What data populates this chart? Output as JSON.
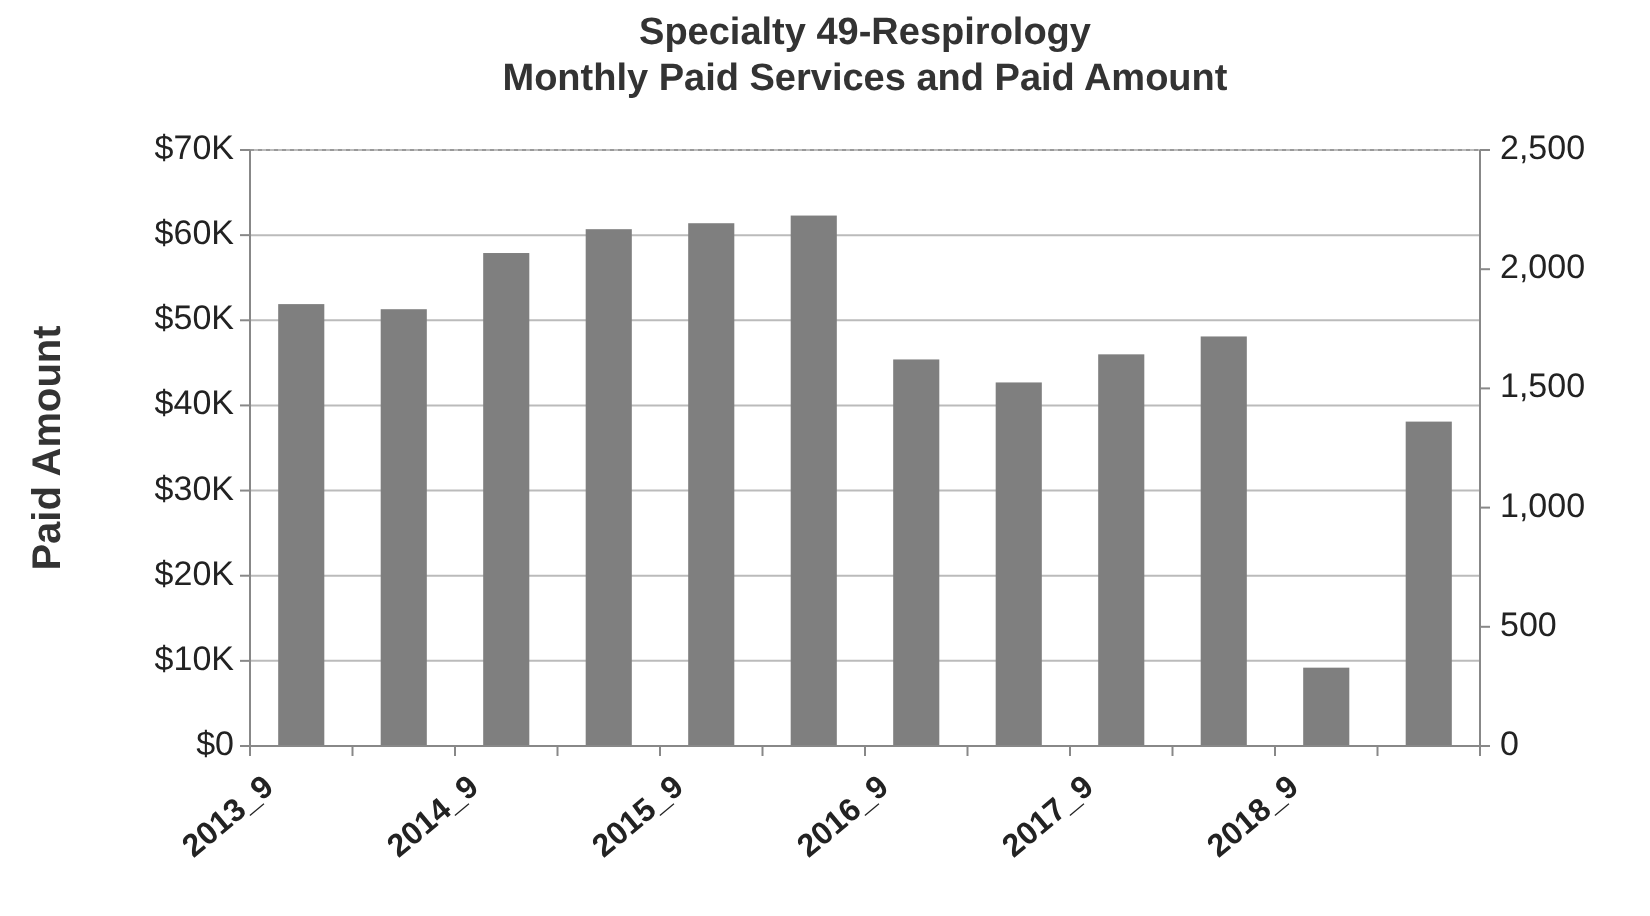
{
  "chart_data": {
    "type": "bar",
    "title": "Specialty 49-Respirology\nMonthly Paid Services and Paid Amount",
    "ylabel": "Paid Amount",
    "categories": [
      "2013_9",
      null,
      "2014_9",
      null,
      "2015_9",
      null,
      "2016_9",
      null,
      "2017_9",
      null,
      "2018_9",
      null
    ],
    "values": [
      51.9,
      51.3,
      57.9,
      60.7,
      61.4,
      62.3,
      45.4,
      42.7,
      46,
      48.1,
      9.2,
      38.1
    ],
    "color": "#7f7f7f",
    "ylim": [
      0,
      70
    ],
    "yticks": [
      {
        "value": 0,
        "label": "$0"
      },
      {
        "value": 10,
        "label": "$10K"
      },
      {
        "value": 20,
        "label": "$20K"
      },
      {
        "value": 30,
        "label": "$30K"
      },
      {
        "value": 40,
        "label": "$40K"
      },
      {
        "value": 50,
        "label": "$50K"
      },
      {
        "value": 60,
        "label": "$60K"
      },
      {
        "value": 70,
        "label": "$70K"
      }
    ],
    "y2lim": [
      0,
      2500
    ],
    "y2ticks": [
      0,
      {
        "value": 500,
        "label": "500"
      },
      {
        "value": 1000,
        "label": "1,000"
      },
      {
        "value": 1500,
        "label": "1,500"
      },
      {
        "value": 2000,
        "label": "2,000"
      },
      {
        "value": 2500,
        "label": "2,500"
      }
    ],
    "grid": "y"
  }
}
